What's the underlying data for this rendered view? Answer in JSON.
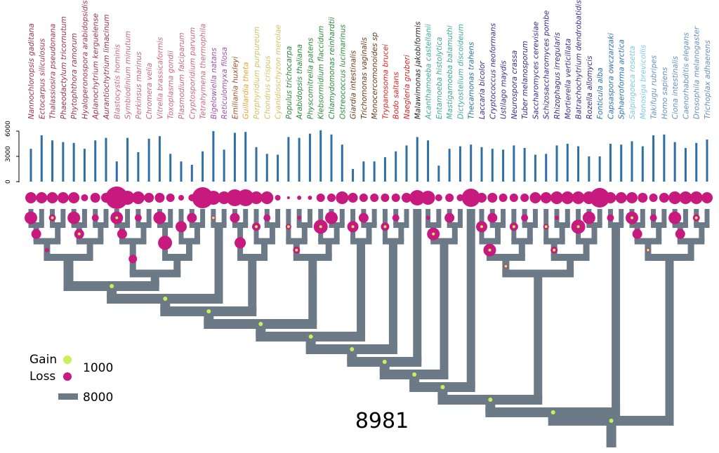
{
  "axis": {
    "ticks": [
      "6000",
      "3000",
      "0"
    ],
    "tick_values": [
      6000,
      3000,
      0
    ],
    "max": 6000
  },
  "legend": {
    "gain": "Gain",
    "loss": "Loss",
    "circle_value": "1000",
    "bar_value": "8000",
    "gain_color": "#c8f05a",
    "loss_color": "#c8197e",
    "branch_color": "#6b7a86"
  },
  "root_value": "8981",
  "bar_color": "#2f6fa6",
  "taxa": [
    {
      "name": "Nannochloropsis gaditana",
      "color": "#a0324a",
      "value": 3900,
      "loss": 8
    },
    {
      "name": "Ectocarpus siliculosus",
      "color": "#a0324a",
      "value": 5500,
      "loss": 8
    },
    {
      "name": "Thalassiosira pseudonana",
      "color": "#a0324a",
      "value": 4900,
      "loss": 8
    },
    {
      "name": "Phaeodactylum tricornutum",
      "color": "#a0324a",
      "value": 4700,
      "loss": 8
    },
    {
      "name": "Phytophthora ramorum",
      "color": "#a0324a",
      "value": 4600,
      "loss": 8
    },
    {
      "name": "Hyaloperonospora arabidopsidis",
      "color": "#a0324a",
      "value": 3900,
      "loss": 5
    },
    {
      "name": "Aplanochytrium kerguelense",
      "color": "#a0324a",
      "value": 4900,
      "loss": 7
    },
    {
      "name": "Aurantiochytrium limacinum",
      "color": "#a0324a",
      "value": 5200,
      "loss": 7
    },
    {
      "name": "Blastocystis hominis",
      "color": "#c86878",
      "value": 2400,
      "loss": 16
    },
    {
      "name": "Symbiodinium minutum",
      "color": "#c86878",
      "value": 5200,
      "loss": 10
    },
    {
      "name": "Perkinsus marinus",
      "color": "#c86878",
      "value": 3500,
      "loss": 9
    },
    {
      "name": "Chromera velia",
      "color": "#c86878",
      "value": 5100,
      "loss": 7
    },
    {
      "name": "Vitrella brassicaformis",
      "color": "#c86878",
      "value": 5400,
      "loss": 7
    },
    {
      "name": "Toxoplasma gondii",
      "color": "#c86878",
      "value": 3300,
      "loss": 6
    },
    {
      "name": "Plasmodium falciparum",
      "color": "#c86878",
      "value": 2400,
      "loss": 4
    },
    {
      "name": "Cryptosporidium parvum",
      "color": "#c86878",
      "value": 2000,
      "loss": 5
    },
    {
      "name": "Tetrahymena thermophila",
      "color": "#c86878",
      "value": 3600,
      "loss": 15
    },
    {
      "name": "Bigelowiella natans",
      "color": "#a050b0",
      "value": 6000,
      "loss": 10
    },
    {
      "name": "Reticulomyxa filosa",
      "color": "#a050b0",
      "value": 3800,
      "loss": 9
    },
    {
      "name": "Emiliania huxleyi",
      "color": "#a05028",
      "value": 5800,
      "loss": 12
    },
    {
      "name": "Guillardia theta",
      "color": "#e8a030",
      "value": 5900,
      "loss": 12
    },
    {
      "name": "Porphyridium purpureum",
      "color": "#d8c060",
      "value": 4100,
      "loss": 9
    },
    {
      "name": "Chondrus crispus",
      "color": "#d8c060",
      "value": 3300,
      "loss": 9
    },
    {
      "name": "Cyanidioschyzon merolae",
      "color": "#d8c060",
      "value": 3200,
      "loss": 4
    },
    {
      "name": "Populus trichocarpa",
      "color": "#2a8a3a",
      "value": 5300,
      "loss": 2
    },
    {
      "name": "Arabidopsis thaliana",
      "color": "#2a8a3a",
      "value": 5200,
      "loss": 3
    },
    {
      "name": "Physcomitrella patens",
      "color": "#2a8a3a",
      "value": 5700,
      "loss": 3
    },
    {
      "name": "Klebsormidium flaccidum",
      "color": "#2a8a3a",
      "value": 6100,
      "loss": 6
    },
    {
      "name": "Chlamydomonas reinhardtii",
      "color": "#2a8a3a",
      "value": 5600,
      "loss": 6
    },
    {
      "name": "Ostreococcus lucimarinus",
      "color": "#2a8a3a",
      "value": 4400,
      "loss": 9
    },
    {
      "name": "Giardia intestinalis",
      "color": "#6a3a1a",
      "value": 1500,
      "loss": 7
    },
    {
      "name": "Trichomonas vaginalis",
      "color": "#6a3a1a",
      "value": 2400,
      "loss": 6
    },
    {
      "name": "Monocercomonoides sp",
      "color": "#6a3a1a",
      "value": 2400,
      "loss": 6
    },
    {
      "name": "Trypanosoma brucei",
      "color": "#e02020",
      "value": 2900,
      "loss": 6
    },
    {
      "name": "Bodo saltans",
      "color": "#e02020",
      "value": 3600,
      "loss": 6
    },
    {
      "name": "Naegleria gruberi",
      "color": "#e02020",
      "value": 4300,
      "loss": 7
    },
    {
      "name": "Malawimonas jakobiformis",
      "color": "#202020",
      "value": 5300,
      "loss": 11
    },
    {
      "name": "Acanthamoeba castellanii",
      "color": "#40a898",
      "value": 4900,
      "loss": 10
    },
    {
      "name": "Entamoeba histolytica",
      "color": "#40a898",
      "value": 1900,
      "loss": 5
    },
    {
      "name": "Mastigamoeba balamuthi",
      "color": "#40a898",
      "value": 3900,
      "loss": 6
    },
    {
      "name": "Dictyostelium discoideum",
      "color": "#40a898",
      "value": 4200,
      "loss": 5
    },
    {
      "name": "Thecamonas trahens",
      "color": "#2a6fa0",
      "value": 4400,
      "loss": 13
    },
    {
      "name": "Laccaria bicolor",
      "color": "#3a2a90",
      "value": 4100,
      "loss": 7
    },
    {
      "name": "Cryptococcus neoformans",
      "color": "#3a2a90",
      "value": 3900,
      "loss": 7
    },
    {
      "name": "Ustilago maydis",
      "color": "#3a2a90",
      "value": 3800,
      "loss": 6
    },
    {
      "name": "Neurospora crassa",
      "color": "#3a2a90",
      "value": 4300,
      "loss": 6
    },
    {
      "name": "Tuber melanosporum",
      "color": "#3a2a90",
      "value": 4000,
      "loss": 6
    },
    {
      "name": "Saccharomyces cerevisiae",
      "color": "#3a2a90",
      "value": 3200,
      "loss": 8
    },
    {
      "name": "Schizosaccharomyces pombe",
      "color": "#3a2a90",
      "value": 3300,
      "loss": 8
    },
    {
      "name": "Rhizophagus irregularis",
      "color": "#3a2a90",
      "value": 4300,
      "loss": 9
    },
    {
      "name": "Mortierella verticillata",
      "color": "#3a2a90",
      "value": 4500,
      "loss": 9
    },
    {
      "name": "Batrachochytrium dendrobatidis",
      "color": "#3a2a90",
      "value": 4200,
      "loss": 9
    },
    {
      "name": "Rozella allomycis",
      "color": "#3a2a90",
      "value": 3000,
      "loss": 9
    },
    {
      "name": "Fonticula alba",
      "color": "#2a6fb0",
      "value": 3000,
      "loss": 14
    },
    {
      "name": "Capsaspora owczarzaki",
      "color": "#2a6fb0",
      "value": 4500,
      "loss": 8
    },
    {
      "name": "Sphaeroforma arctica",
      "color": "#2a6fb0",
      "value": 4400,
      "loss": 8
    },
    {
      "name": "Salpingoeca rosetta",
      "color": "#80c8e8",
      "value": 4800,
      "loss": 8
    },
    {
      "name": "Monosiga brevicollis",
      "color": "#80c8e8",
      "value": 4200,
      "loss": 7
    },
    {
      "name": "Takifugu rubripes",
      "color": "#6890c0",
      "value": 5500,
      "loss": 6
    },
    {
      "name": "Homo sapiens",
      "color": "#6890c0",
      "value": 5600,
      "loss": 7
    },
    {
      "name": "Ciona intestinalis",
      "color": "#6890c0",
      "value": 4700,
      "loss": 9
    },
    {
      "name": "Caenorhabditis elegans",
      "color": "#6890c0",
      "value": 4000,
      "loss": 9
    },
    {
      "name": "Drosophila melanogaster",
      "color": "#6890c0",
      "value": 4600,
      "loss": 9
    },
    {
      "name": "Trichoplax adhaerens",
      "color": "#6890c0",
      "value": 5000,
      "loss": 8
    }
  ]
}
